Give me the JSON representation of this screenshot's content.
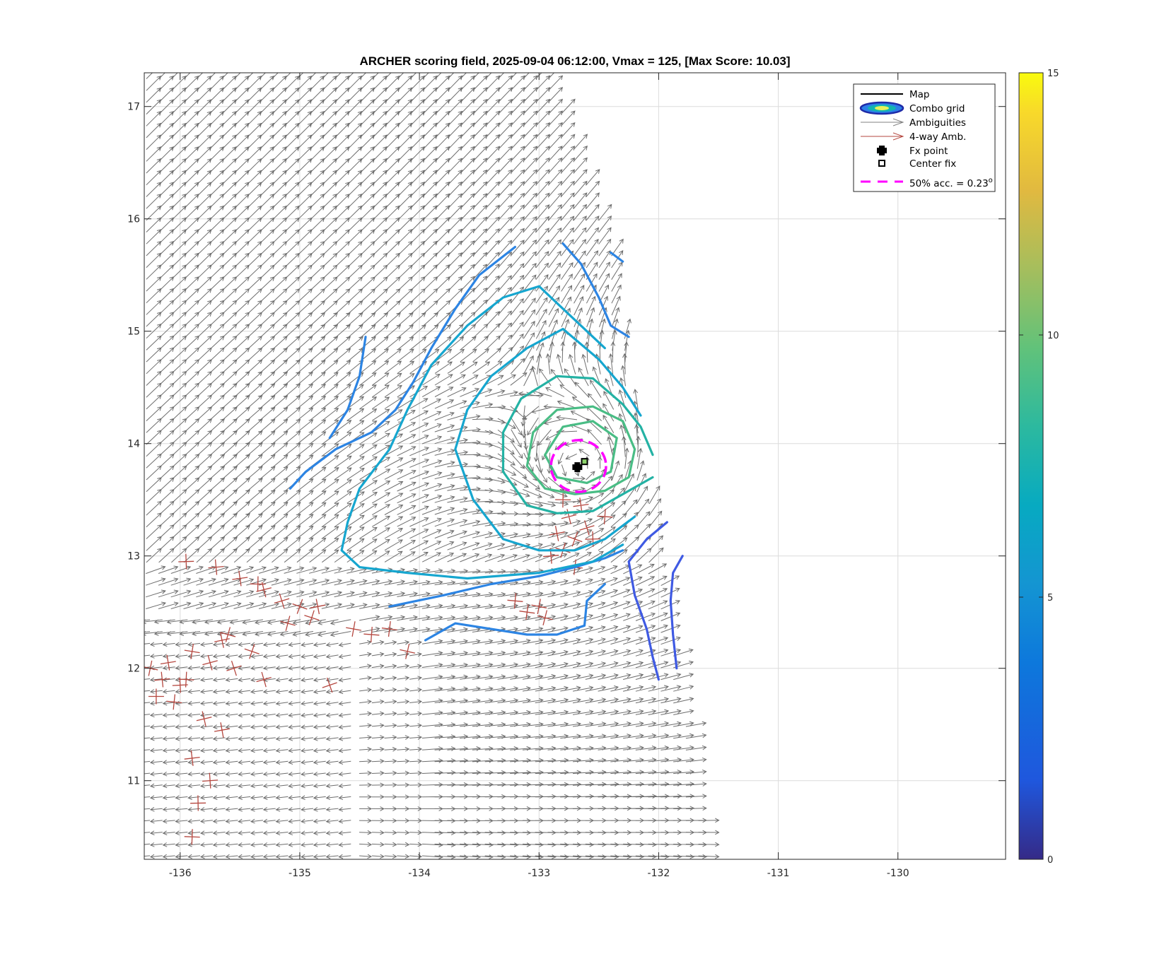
{
  "chart_data": {
    "type": "contour",
    "title": "ARCHER scoring field, 2025-09-04 06:12:00, Vmax = 125, [Max Score: 10.03]",
    "x_ticks": [
      "-136",
      "-135",
      "-134",
      "-133",
      "-132",
      "-131",
      "-130"
    ],
    "y_ticks": [
      "11",
      "12",
      "13",
      "14",
      "15",
      "16",
      "17"
    ],
    "xlim": [
      -136.3,
      -129.1
    ],
    "ylim": [
      10.3,
      17.3
    ],
    "grid": true,
    "colorbar": {
      "ticks": [
        "0",
        "5",
        "10",
        "15"
      ],
      "range": [
        0,
        15
      ],
      "colormap": "parula"
    },
    "legend": {
      "placement": "top-right",
      "entries": [
        "Map",
        "Combo grid",
        "Ambiguities",
        "4-way Amb.",
        "Fx point",
        "Center fix",
        "50% acc. = 0.23"
      ],
      "superscript": "o"
    },
    "fx_point": {
      "x": -132.68,
      "y": 13.79
    },
    "center_fix": {
      "x": -132.62,
      "y": 13.84
    },
    "accuracy_circle": {
      "center": [
        -132.67,
        13.8
      ],
      "radius_deg": 0.23,
      "color": "#ff00ff"
    },
    "contours": [
      {
        "level": 4.5,
        "color": "#2c84e3",
        "lines": [
          [
            [
              -132.4,
              15.7
            ],
            [
              -132.3,
              15.62
            ]
          ],
          [
            [
              -132.8,
              15.78
            ],
            [
              -132.65,
              15.6
            ],
            [
              -132.5,
              15.3
            ],
            [
              -132.4,
              15.05
            ],
            [
              -132.25,
              14.95
            ]
          ],
          [
            [
              -133.2,
              15.75
            ],
            [
              -133.5,
              15.5
            ],
            [
              -133.7,
              15.2
            ],
            [
              -133.9,
              14.85
            ],
            [
              -134.05,
              14.55
            ],
            [
              -134.2,
              14.3
            ],
            [
              -134.4,
              14.1
            ],
            [
              -134.7,
              13.95
            ],
            [
              -134.95,
              13.75
            ],
            [
              -135.08,
              13.6
            ]
          ],
          [
            [
              -134.45,
              14.95
            ],
            [
              -134.5,
              14.6
            ],
            [
              -134.6,
              14.3
            ],
            [
              -134.75,
              14.05
            ]
          ],
          [
            [
              -134.25,
              12.55
            ],
            [
              -133.8,
              12.65
            ],
            [
              -133.4,
              12.75
            ],
            [
              -133.0,
              12.82
            ],
            [
              -132.7,
              12.9
            ],
            [
              -132.45,
              12.98
            ],
            [
              -132.3,
              13.05
            ]
          ],
          [
            [
              -133.95,
              12.25
            ],
            [
              -133.7,
              12.4
            ],
            [
              -133.4,
              12.35
            ],
            [
              -133.1,
              12.3
            ],
            [
              -132.85,
              12.3
            ],
            [
              -132.62,
              12.38
            ],
            [
              -132.6,
              12.6
            ],
            [
              -132.45,
              12.75
            ]
          ]
        ]
      },
      {
        "level": 5.5,
        "color": "#16a6cf",
        "lines": [
          [
            [
              -132.45,
              14.85
            ],
            [
              -132.6,
              15.0
            ],
            [
              -132.8,
              15.2
            ],
            [
              -133.0,
              15.4
            ],
            [
              -133.3,
              15.3
            ],
            [
              -133.6,
              15.05
            ],
            [
              -133.9,
              14.7
            ],
            [
              -134.1,
              14.3
            ],
            [
              -134.25,
              13.95
            ],
            [
              -134.5,
              13.6
            ],
            [
              -134.6,
              13.3
            ],
            [
              -134.65,
              13.05
            ],
            [
              -134.5,
              12.9
            ],
            [
              -134.1,
              12.85
            ],
            [
              -133.6,
              12.8
            ],
            [
              -133.0,
              12.85
            ],
            [
              -132.55,
              12.95
            ],
            [
              -132.3,
              13.1
            ]
          ],
          [
            [
              -132.15,
              14.25
            ],
            [
              -132.3,
              14.5
            ],
            [
              -132.5,
              14.75
            ],
            [
              -132.8,
              15.02
            ],
            [
              -133.1,
              14.85
            ],
            [
              -133.4,
              14.6
            ],
            [
              -133.6,
              14.3
            ],
            [
              -133.7,
              13.95
            ],
            [
              -133.55,
              13.5
            ],
            [
              -133.3,
              13.15
            ],
            [
              -133.0,
              13.05
            ],
            [
              -132.7,
              13.05
            ],
            [
              -132.45,
              13.15
            ],
            [
              -132.2,
              13.35
            ]
          ]
        ]
      },
      {
        "level": 6.8,
        "color": "#24b2a4",
        "lines": [
          [
            [
              -132.05,
              13.9
            ],
            [
              -132.15,
              14.15
            ],
            [
              -132.3,
              14.35
            ],
            [
              -132.55,
              14.58
            ],
            [
              -132.85,
              14.6
            ],
            [
              -133.15,
              14.4
            ],
            [
              -133.3,
              14.1
            ],
            [
              -133.3,
              13.75
            ],
            [
              -133.1,
              13.45
            ],
            [
              -132.85,
              13.38
            ],
            [
              -132.55,
              13.4
            ],
            [
              -132.3,
              13.55
            ],
            [
              -132.05,
              13.7
            ]
          ]
        ]
      },
      {
        "level": 8.0,
        "color": "#49bd85",
        "lines": [
          [
            [
              -132.2,
              13.95
            ],
            [
              -132.3,
              14.2
            ],
            [
              -132.55,
              14.33
            ],
            [
              -132.85,
              14.3
            ],
            [
              -133.05,
              14.1
            ],
            [
              -133.1,
              13.8
            ],
            [
              -132.95,
              13.6
            ],
            [
              -132.7,
              13.55
            ],
            [
              -132.45,
              13.58
            ],
            [
              -132.25,
              13.7
            ],
            [
              -132.2,
              13.95
            ]
          ],
          [
            [
              -132.35,
              14.05
            ],
            [
              -132.55,
              14.2
            ],
            [
              -132.8,
              14.15
            ],
            [
              -132.95,
              13.9
            ],
            [
              -132.85,
              13.7
            ],
            [
              -132.6,
              13.65
            ],
            [
              -132.4,
              13.75
            ],
            [
              -132.35,
              14.05
            ]
          ]
        ]
      },
      {
        "level": 3.5,
        "color": "#3f5ae3",
        "lines": [
          [
            [
              -131.93,
              13.3
            ],
            [
              -132.1,
              13.15
            ],
            [
              -132.25,
              12.95
            ],
            [
              -132.2,
              12.65
            ],
            [
              -132.1,
              12.35
            ],
            [
              -132.05,
              12.1
            ],
            [
              -132.0,
              11.9
            ]
          ],
          [
            [
              -131.8,
              13.0
            ],
            [
              -131.88,
              12.85
            ],
            [
              -131.9,
              12.6
            ],
            [
              -131.88,
              12.3
            ],
            [
              -131.85,
              12.0
            ]
          ]
        ]
      }
    ],
    "wind_swath": {
      "left_edge_lon": -136.3,
      "right_edge": [
        [
          -132.9,
          17.3
        ],
        [
          -132.4,
          15.8
        ],
        [
          -132.2,
          14.5
        ],
        [
          -131.95,
          12.7
        ],
        [
          -131.75,
          11.5
        ],
        [
          -131.6,
          10.3
        ]
      ]
    },
    "four_way_ambiguity_region": "bands near lat 11-13 west of -134 and south-east of the storm center"
  }
}
